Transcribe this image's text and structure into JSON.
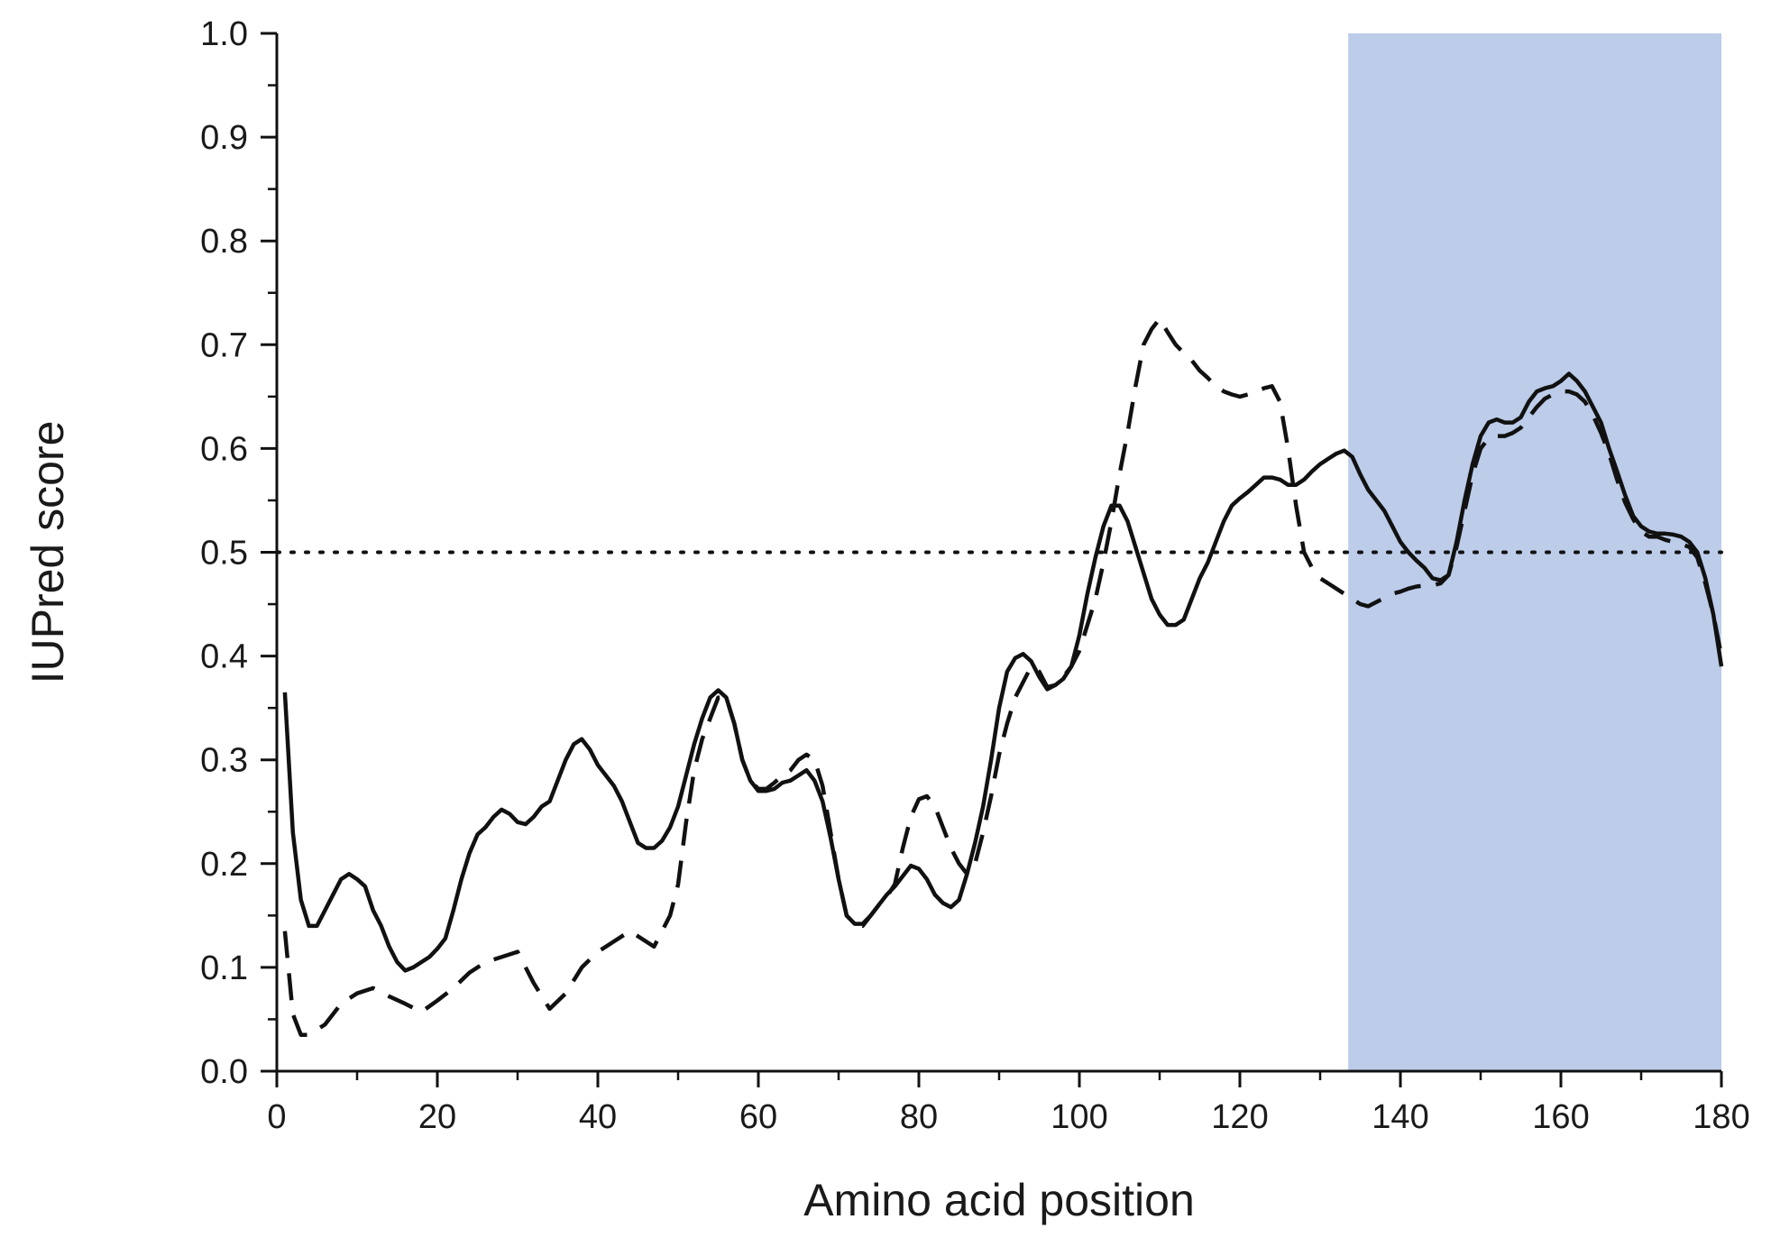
{
  "chart_data": {
    "type": "line",
    "title": "",
    "xlabel": "Amino acid position",
    "ylabel": "IUPred score",
    "xlim": [
      0,
      180
    ],
    "ylim": [
      0.0,
      1.0
    ],
    "x_ticks": [
      0,
      20,
      40,
      60,
      80,
      100,
      120,
      140,
      160,
      180
    ],
    "x_tick_labels": [
      "0",
      "20",
      "40",
      "60",
      "80",
      "100",
      "120",
      "140",
      "160",
      "180"
    ],
    "y_ticks": [
      0.0,
      0.1,
      0.2,
      0.3,
      0.4,
      0.5,
      0.6,
      0.7,
      0.8,
      0.9,
      1.0
    ],
    "y_tick_labels": [
      "0.0",
      "0.1",
      "0.2",
      "0.3",
      "0.4",
      "0.5",
      "0.6",
      "0.7",
      "0.8",
      "0.9",
      "1.0"
    ],
    "grid": false,
    "legend": "none",
    "threshold": {
      "y": 0.5,
      "style": "dotted",
      "color": "#111111"
    },
    "highlight_region": {
      "x_start": 133.5,
      "x_end": 180,
      "color": "#bccce9"
    },
    "series": [
      {
        "style": "solid",
        "color": "#111111",
        "x": [
          1,
          2,
          3,
          4,
          5,
          6,
          7,
          8,
          9,
          10,
          11,
          12,
          13,
          14,
          15,
          16,
          17,
          18,
          19,
          20,
          21,
          22,
          23,
          24,
          25,
          26,
          27,
          28,
          29,
          30,
          31,
          32,
          33,
          34,
          35,
          36,
          37,
          38,
          39,
          40,
          41,
          42,
          43,
          44,
          45,
          46,
          47,
          48,
          49,
          50,
          51,
          52,
          53,
          54,
          55,
          56,
          57,
          58,
          59,
          60,
          61,
          62,
          63,
          64,
          65,
          66,
          67,
          68,
          69,
          70,
          71,
          72,
          73,
          74,
          75,
          76,
          77,
          78,
          79,
          80,
          81,
          82,
          83,
          84,
          85,
          86,
          87,
          88,
          89,
          90,
          91,
          92,
          93,
          94,
          95,
          96,
          97,
          98,
          99,
          100,
          101,
          102,
          103,
          104,
          105,
          106,
          107,
          108,
          109,
          110,
          111,
          112,
          113,
          114,
          115,
          116,
          117,
          118,
          119,
          120,
          121,
          122,
          123,
          124,
          125,
          126,
          127,
          128,
          129,
          130,
          131,
          132,
          133,
          134,
          135,
          136,
          137,
          138,
          139,
          140,
          141,
          142,
          143,
          144,
          145,
          146,
          147,
          148,
          149,
          150,
          151,
          152,
          153,
          154,
          155,
          156,
          157,
          158,
          159,
          160,
          161,
          162,
          163,
          164,
          165,
          166,
          167,
          168,
          169,
          170,
          171,
          172,
          173,
          174,
          175,
          176,
          177,
          178,
          179,
          180
        ],
        "y": [
          0.365,
          0.23,
          0.165,
          0.14,
          0.14,
          0.155,
          0.17,
          0.185,
          0.19,
          0.185,
          0.178,
          0.155,
          0.14,
          0.12,
          0.105,
          0.097,
          0.1,
          0.105,
          0.11,
          0.118,
          0.128,
          0.155,
          0.185,
          0.21,
          0.228,
          0.235,
          0.245,
          0.252,
          0.248,
          0.24,
          0.238,
          0.245,
          0.255,
          0.26,
          0.28,
          0.3,
          0.315,
          0.32,
          0.31,
          0.295,
          0.285,
          0.275,
          0.26,
          0.24,
          0.22,
          0.215,
          0.215,
          0.222,
          0.235,
          0.255,
          0.285,
          0.315,
          0.34,
          0.36,
          0.367,
          0.36,
          0.335,
          0.3,
          0.28,
          0.27,
          0.27,
          0.272,
          0.278,
          0.28,
          0.285,
          0.29,
          0.28,
          0.26,
          0.225,
          0.185,
          0.15,
          0.142,
          0.142,
          0.15,
          0.16,
          0.17,
          0.178,
          0.188,
          0.198,
          0.195,
          0.185,
          0.17,
          0.162,
          0.158,
          0.165,
          0.19,
          0.22,
          0.255,
          0.3,
          0.35,
          0.385,
          0.398,
          0.402,
          0.395,
          0.38,
          0.368,
          0.372,
          0.378,
          0.39,
          0.42,
          0.46,
          0.495,
          0.525,
          0.545,
          0.545,
          0.53,
          0.505,
          0.48,
          0.455,
          0.44,
          0.43,
          0.43,
          0.435,
          0.455,
          0.475,
          0.49,
          0.51,
          0.53,
          0.545,
          0.552,
          0.558,
          0.565,
          0.572,
          0.572,
          0.57,
          0.565,
          0.565,
          0.57,
          0.578,
          0.585,
          0.59,
          0.595,
          0.598,
          0.592,
          0.575,
          0.56,
          0.55,
          0.54,
          0.525,
          0.51,
          0.5,
          0.492,
          0.485,
          0.475,
          0.473,
          0.478,
          0.51,
          0.55,
          0.585,
          0.612,
          0.625,
          0.628,
          0.625,
          0.625,
          0.63,
          0.645,
          0.655,
          0.658,
          0.66,
          0.665,
          0.672,
          0.665,
          0.655,
          0.64,
          0.625,
          0.6,
          0.578,
          0.555,
          0.535,
          0.525,
          0.52,
          0.518,
          0.518,
          0.517,
          0.515,
          0.51,
          0.5,
          0.475,
          0.44,
          0.39
        ]
      },
      {
        "style": "dashed",
        "color": "#111111",
        "x": [
          1,
          2,
          3,
          4,
          5,
          6,
          8,
          10,
          12,
          14,
          16,
          18,
          20,
          22,
          24,
          26,
          28,
          30,
          32,
          34,
          36,
          38,
          40,
          42,
          44,
          46,
          47,
          48,
          49,
          50,
          51,
          52,
          53,
          54,
          55,
          56,
          57,
          58,
          59,
          60,
          61,
          62,
          63,
          64,
          65,
          66,
          67,
          68,
          69,
          70,
          71,
          72,
          73,
          74,
          75,
          76,
          77,
          78,
          79,
          80,
          81,
          82,
          83,
          84,
          85,
          86,
          87,
          88,
          89,
          90,
          91,
          92,
          93,
          94,
          95,
          96,
          97,
          98,
          99,
          100,
          101,
          102,
          103,
          104,
          105,
          106,
          107,
          108,
          109,
          110,
          111,
          112,
          113,
          114,
          115,
          116,
          117,
          118,
          119,
          120,
          121,
          122,
          123,
          124,
          125,
          126,
          127,
          128,
          129,
          130,
          131,
          132,
          133,
          134,
          135,
          136,
          137,
          138,
          139,
          140,
          141,
          142,
          143,
          144,
          145,
          146,
          147,
          148,
          149,
          150,
          151,
          152,
          153,
          154,
          155,
          156,
          157,
          158,
          159,
          160,
          161,
          162,
          163,
          164,
          165,
          166,
          167,
          168,
          169,
          170,
          171,
          172,
          173,
          174,
          175,
          176,
          177,
          178,
          179,
          180
        ],
        "y": [
          0.135,
          0.055,
          0.035,
          0.035,
          0.04,
          0.045,
          0.065,
          0.075,
          0.08,
          0.072,
          0.065,
          0.057,
          0.068,
          0.08,
          0.095,
          0.105,
          0.11,
          0.115,
          0.085,
          0.06,
          0.075,
          0.1,
          0.115,
          0.125,
          0.135,
          0.125,
          0.12,
          0.135,
          0.15,
          0.18,
          0.24,
          0.29,
          0.32,
          0.34,
          0.36,
          0.36,
          0.335,
          0.3,
          0.28,
          0.272,
          0.272,
          0.278,
          0.285,
          0.29,
          0.3,
          0.305,
          0.3,
          0.275,
          0.23,
          0.185,
          0.15,
          0.142,
          0.14,
          0.15,
          0.16,
          0.168,
          0.18,
          0.215,
          0.245,
          0.262,
          0.265,
          0.255,
          0.235,
          0.215,
          0.2,
          0.19,
          0.2,
          0.23,
          0.265,
          0.305,
          0.335,
          0.36,
          0.375,
          0.39,
          0.385,
          0.37,
          0.372,
          0.38,
          0.39,
          0.405,
          0.43,
          0.455,
          0.49,
          0.53,
          0.575,
          0.615,
          0.66,
          0.7,
          0.715,
          0.725,
          0.712,
          0.7,
          0.692,
          0.685,
          0.675,
          0.668,
          0.66,
          0.655,
          0.652,
          0.65,
          0.652,
          0.655,
          0.658,
          0.66,
          0.645,
          0.6,
          0.545,
          0.5,
          0.485,
          0.475,
          0.47,
          0.465,
          0.46,
          0.455,
          0.45,
          0.448,
          0.452,
          0.456,
          0.46,
          0.462,
          0.465,
          0.467,
          0.468,
          0.468,
          0.47,
          0.478,
          0.505,
          0.54,
          0.575,
          0.6,
          0.61,
          0.612,
          0.612,
          0.615,
          0.62,
          0.63,
          0.64,
          0.648,
          0.652,
          0.655,
          0.655,
          0.652,
          0.645,
          0.632,
          0.615,
          0.595,
          0.57,
          0.548,
          0.532,
          0.52,
          0.515,
          0.515,
          0.512,
          0.51,
          0.508,
          0.505,
          0.495,
          0.47,
          0.44,
          0.4
        ]
      }
    ]
  }
}
